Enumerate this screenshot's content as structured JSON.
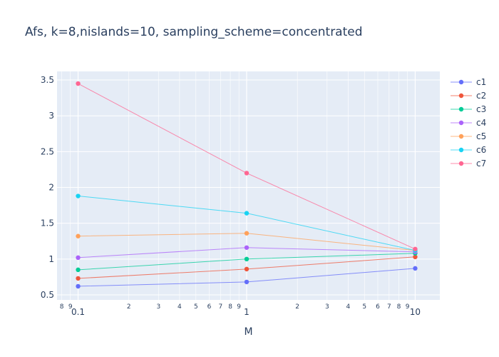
{
  "chart_data": {
    "type": "line",
    "title": "Afs, k=8,nislands=10, sampling_scheme=concentrated",
    "xlabel": "M",
    "ylabel": "",
    "x_scale": "log",
    "x": [
      0.1,
      1,
      10
    ],
    "xlim": [
      0.075,
      14
    ],
    "ylim": [
      0.43,
      3.62
    ],
    "y_ticks": [
      0.5,
      1,
      1.5,
      2,
      2.5,
      3,
      3.5
    ],
    "y_tick_labels": [
      "0.5",
      "1",
      "1.5",
      "2",
      "2.5",
      "3",
      "3.5"
    ],
    "x_major_ticks": [
      0.1,
      1,
      10
    ],
    "x_major_labels": [
      "0.1",
      "1",
      "10"
    ],
    "x_minor_ticks": [
      0.08,
      0.09,
      0.2,
      0.3,
      0.4,
      0.5,
      0.6,
      0.7,
      0.8,
      0.9,
      2,
      3,
      4,
      5,
      6,
      7,
      8,
      9
    ],
    "x_minor_labels": [
      "8",
      "9",
      "2",
      "3",
      "4",
      "5",
      "6",
      "7",
      "8",
      "9",
      "2",
      "3",
      "4",
      "5",
      "6",
      "7",
      "8",
      "9"
    ],
    "grid": true,
    "legend_position": "right",
    "background_color": "#e5ecf6",
    "series": [
      {
        "name": "c1",
        "color": "#636efa",
        "values": [
          0.62,
          0.68,
          0.87
        ]
      },
      {
        "name": "c2",
        "color": "#ef553b",
        "values": [
          0.73,
          0.86,
          1.03
        ]
      },
      {
        "name": "c3",
        "color": "#00cc96",
        "values": [
          0.85,
          1.0,
          1.08
        ]
      },
      {
        "name": "c4",
        "color": "#ab63fa",
        "values": [
          1.02,
          1.16,
          1.1
        ]
      },
      {
        "name": "c5",
        "color": "#ffa15a",
        "values": [
          1.32,
          1.36,
          1.12
        ]
      },
      {
        "name": "c6",
        "color": "#19d3f3",
        "values": [
          1.88,
          1.64,
          1.12
        ]
      },
      {
        "name": "c7",
        "color": "#ff6692",
        "values": [
          3.45,
          2.2,
          1.14
        ]
      }
    ]
  }
}
